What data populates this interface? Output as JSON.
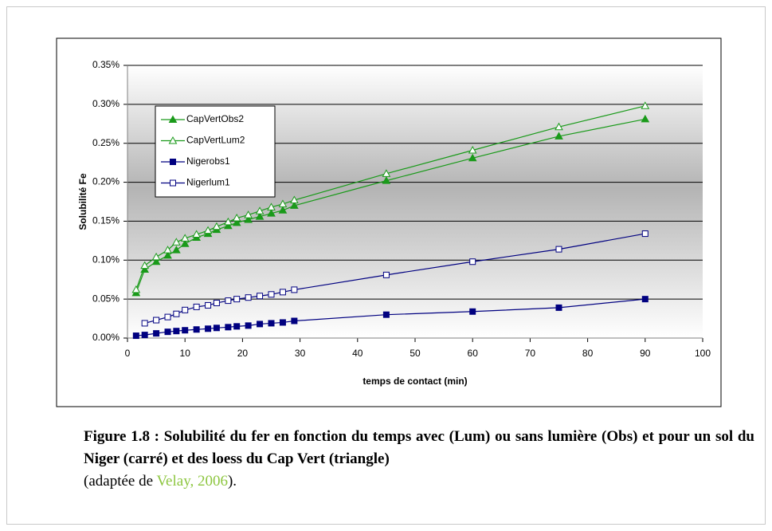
{
  "chart_data": {
    "type": "line",
    "xlabel": "temps de contact (min)",
    "ylabel": "Solubilité Fe",
    "x": [
      1.5,
      3,
      5,
      7,
      8.5,
      10,
      12,
      14,
      15.5,
      17.5,
      19,
      21,
      23,
      25,
      27,
      29,
      45,
      60,
      75,
      90
    ],
    "series": [
      {
        "name": "CapVertObs2",
        "color": "#1a9a1a",
        "marker": "triangle",
        "filled": true,
        "values": [
          0.058,
          0.088,
          0.098,
          0.106,
          0.113,
          0.121,
          0.129,
          0.134,
          0.139,
          0.144,
          0.148,
          0.152,
          0.156,
          0.16,
          0.164,
          0.17,
          0.202,
          0.231,
          0.259,
          0.281
        ]
      },
      {
        "name": "CapVertLum2",
        "color": "#1a9a1a",
        "marker": "triangle",
        "filled": false,
        "values": [
          0.062,
          0.093,
          0.104,
          0.113,
          0.123,
          0.128,
          0.133,
          0.138,
          0.143,
          0.149,
          0.154,
          0.158,
          0.163,
          0.168,
          0.172,
          0.177,
          0.211,
          0.241,
          0.271,
          0.298
        ]
      },
      {
        "name": "Nigerobs1",
        "color": "#000080",
        "marker": "square",
        "filled": true,
        "values": [
          0.003,
          0.004,
          0.006,
          0.008,
          0.009,
          0.01,
          0.011,
          0.012,
          0.013,
          0.014,
          0.015,
          0.016,
          0.018,
          0.019,
          0.02,
          0.022,
          0.03,
          0.034,
          0.039,
          0.05
        ]
      },
      {
        "name": "Nigerlum1",
        "color": "#000080",
        "marker": "square",
        "filled": false,
        "values": [
          null,
          0.019,
          0.023,
          0.027,
          0.031,
          0.036,
          0.04,
          0.042,
          0.045,
          0.048,
          0.05,
          0.052,
          0.054,
          0.056,
          0.059,
          0.062,
          0.081,
          0.098,
          0.114,
          0.134
        ]
      }
    ],
    "xlim": [
      0,
      100
    ],
    "xticks": [
      0,
      10,
      20,
      30,
      40,
      50,
      60,
      70,
      80,
      90,
      100
    ],
    "ylim": [
      0,
      0.35
    ],
    "yticks": [
      {
        "value": 0,
        "label": "0.00%"
      },
      {
        "value": 0.05,
        "label": "0.05%"
      },
      {
        "value": 0.1,
        "label": "0.10%"
      },
      {
        "value": 0.15,
        "label": "0.15%"
      },
      {
        "value": 0.2,
        "label": "0.20%"
      },
      {
        "value": 0.25,
        "label": "0.25%"
      },
      {
        "value": 0.3,
        "label": "0.30%"
      },
      {
        "value": 0.35,
        "label": "0.35%"
      }
    ],
    "grid": true,
    "legend": "upper left"
  },
  "caption": {
    "text": "Figure 1.8 : Solubilité du fer  en fonction du temps avec (Lum) ou sans lumière (Obs) et pour un sol du Niger (carré) et des loess du Cap Vert (triangle)",
    "source_prefix": "(adaptée de ",
    "source_link": "Velay, 2006",
    "source_suffix": ")."
  }
}
